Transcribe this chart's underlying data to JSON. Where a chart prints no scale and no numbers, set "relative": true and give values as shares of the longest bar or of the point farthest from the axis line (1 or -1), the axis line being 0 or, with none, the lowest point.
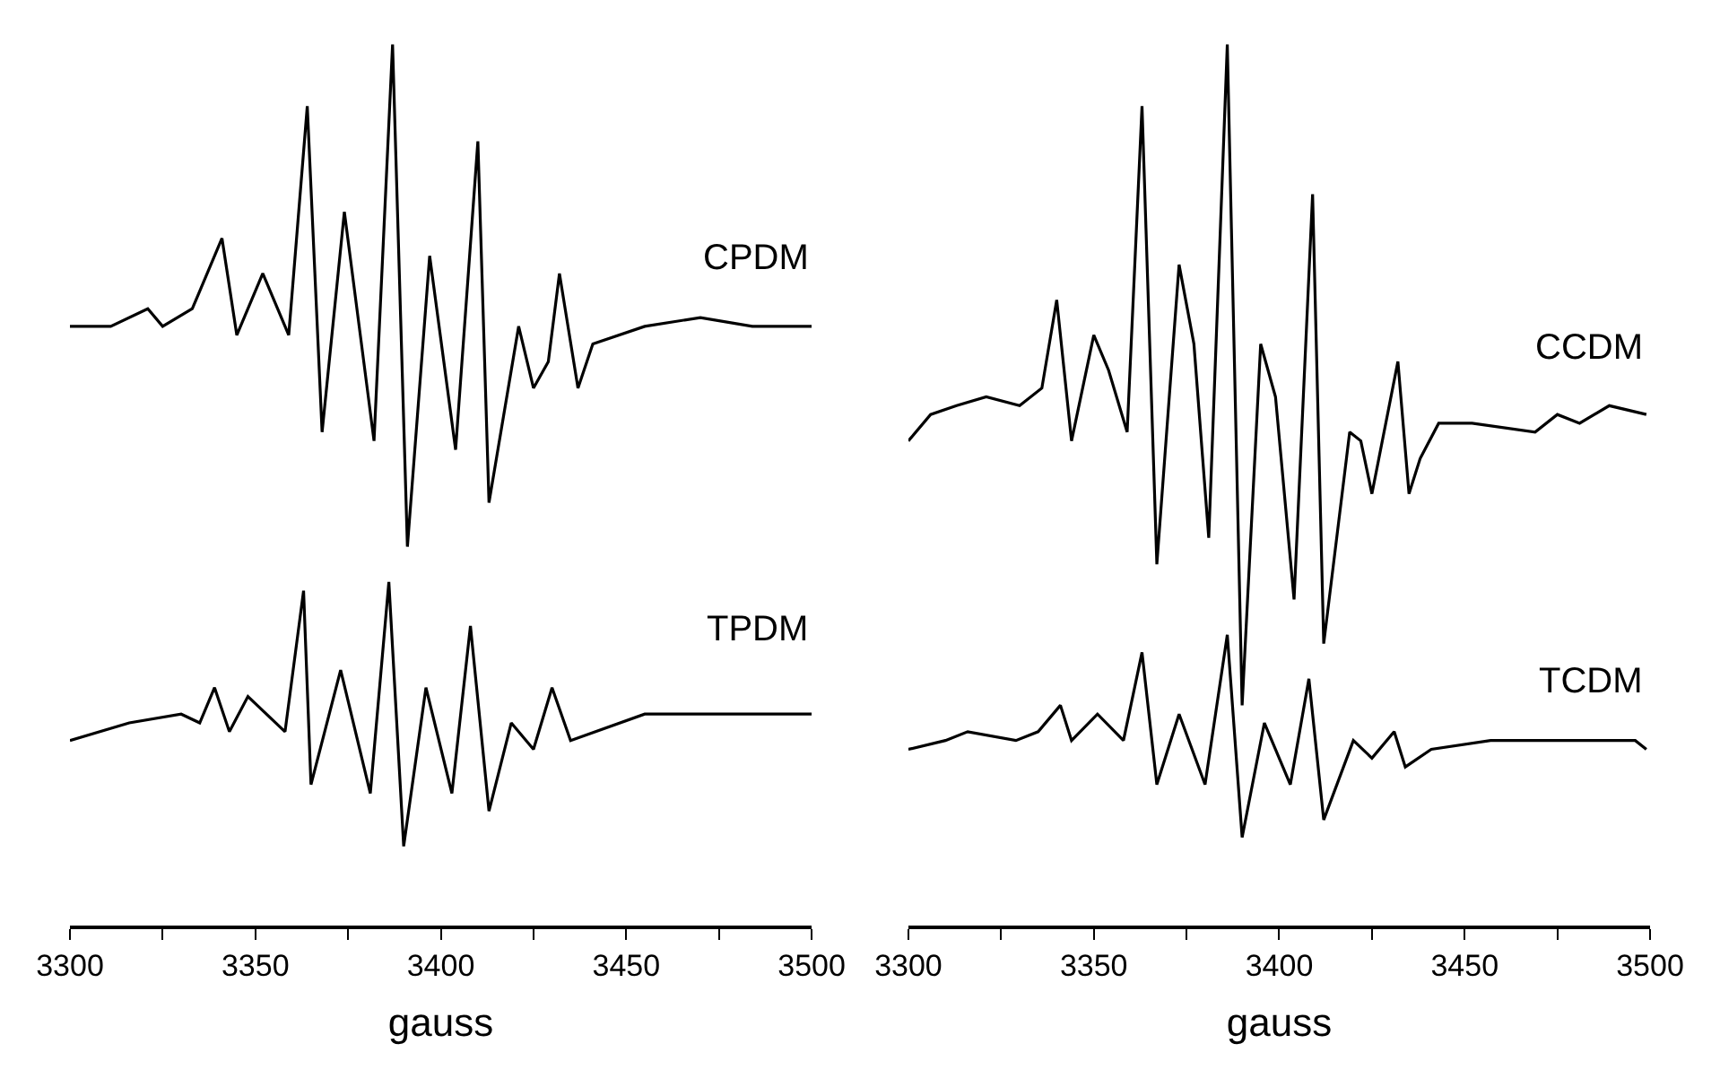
{
  "chart_data": [
    {
      "type": "line",
      "relative": true,
      "xlabel": "gauss",
      "xlim": [
        3300,
        3500
      ],
      "xticks": [
        3300,
        {
          "value": 3325,
          "label": null
        },
        3350,
        {
          "value": 3375,
          "label": null
        },
        3400,
        {
          "value": 3425,
          "label": null
        },
        3450,
        {
          "value": 3475,
          "label": null
        },
        3500
      ],
      "tick_labels": "x",
      "legend": false,
      "marker": "none",
      "line_style": "solid",
      "series": [
        {
          "name": "CPDM",
          "color": "#000000",
          "x": [
            3300,
            3311,
            3321,
            3325,
            3333,
            3335,
            3341,
            3345,
            3352,
            3359,
            3364,
            3368,
            3374,
            3382,
            3387,
            3391,
            3397,
            3404,
            3410,
            3413,
            3421,
            3425,
            3429,
            3432,
            3437,
            3441,
            3455,
            3470,
            3484,
            3500
          ],
          "values": [
            0.68,
            0.68,
            0.7,
            0.68,
            0.7,
            0.72,
            0.78,
            0.67,
            0.74,
            0.67,
            0.93,
            0.56,
            0.81,
            0.55,
            1.0,
            0.43,
            0.76,
            0.54,
            0.89,
            0.48,
            0.68,
            0.61,
            0.64,
            0.74,
            0.61,
            0.66,
            0.68,
            0.69,
            0.68,
            0.68
          ]
        },
        {
          "name": "TPDM",
          "color": "#000000",
          "x": [
            3300,
            3316,
            3330,
            3335,
            3339,
            3343,
            3348,
            3358,
            3363,
            3365,
            3373,
            3381,
            3386,
            3390,
            3396,
            3403,
            3408,
            3413,
            3419,
            3425,
            3430,
            3435,
            3455,
            3484,
            3500
          ],
          "values": [
            0.21,
            0.23,
            0.24,
            0.23,
            0.27,
            0.22,
            0.26,
            0.22,
            0.38,
            0.16,
            0.29,
            0.15,
            0.39,
            0.09,
            0.27,
            0.15,
            0.34,
            0.13,
            0.23,
            0.2,
            0.27,
            0.21,
            0.24,
            0.24,
            0.24
          ]
        }
      ]
    },
    {
      "type": "line",
      "relative": true,
      "xlabel": "gauss",
      "xlim": [
        3300,
        3500
      ],
      "xticks": [
        3300,
        {
          "value": 3325,
          "label": null
        },
        3350,
        {
          "value": 3375,
          "label": null
        },
        3400,
        {
          "value": 3425,
          "label": null
        },
        3450,
        {
          "value": 3475,
          "label": null
        },
        3500
      ],
      "tick_labels": "x",
      "legend": false,
      "marker": "none",
      "line_style": "solid",
      "series": [
        {
          "name": "CCDM",
          "color": "#000000",
          "x": [
            3300,
            3306,
            3313,
            3321,
            3330,
            3336,
            3340,
            3344,
            3350,
            3354,
            3359,
            3363,
            3367,
            3373,
            3377,
            3381,
            3386,
            3390,
            3395,
            3399,
            3404,
            3409,
            3412,
            3419,
            3422,
            3425,
            3432,
            3435,
            3438,
            3443,
            3452,
            3469,
            3475,
            3481,
            3489,
            3499
          ],
          "values": [
            0.55,
            0.58,
            0.59,
            0.6,
            0.59,
            0.61,
            0.71,
            0.55,
            0.67,
            0.63,
            0.56,
            0.93,
            0.41,
            0.75,
            0.66,
            0.44,
            1.0,
            0.25,
            0.66,
            0.6,
            0.37,
            0.83,
            0.32,
            0.56,
            0.55,
            0.49,
            0.64,
            0.49,
            0.53,
            0.57,
            0.57,
            0.56,
            0.58,
            0.57,
            0.59,
            0.58
          ]
        },
        {
          "name": "TCDM",
          "color": "#000000",
          "x": [
            3300,
            3310,
            3316,
            3329,
            3335,
            3341,
            3344,
            3351,
            3358,
            3363,
            3367,
            3373,
            3380,
            3386,
            3390,
            3396,
            3403,
            3408,
            3412,
            3420,
            3425,
            3431,
            3434,
            3441,
            3457,
            3473,
            3496,
            3499
          ],
          "values": [
            0.2,
            0.21,
            0.22,
            0.21,
            0.22,
            0.25,
            0.21,
            0.24,
            0.21,
            0.31,
            0.16,
            0.24,
            0.16,
            0.33,
            0.1,
            0.23,
            0.16,
            0.28,
            0.12,
            0.21,
            0.19,
            0.22,
            0.18,
            0.2,
            0.21,
            0.21,
            0.21,
            0.2
          ]
        }
      ]
    }
  ]
}
